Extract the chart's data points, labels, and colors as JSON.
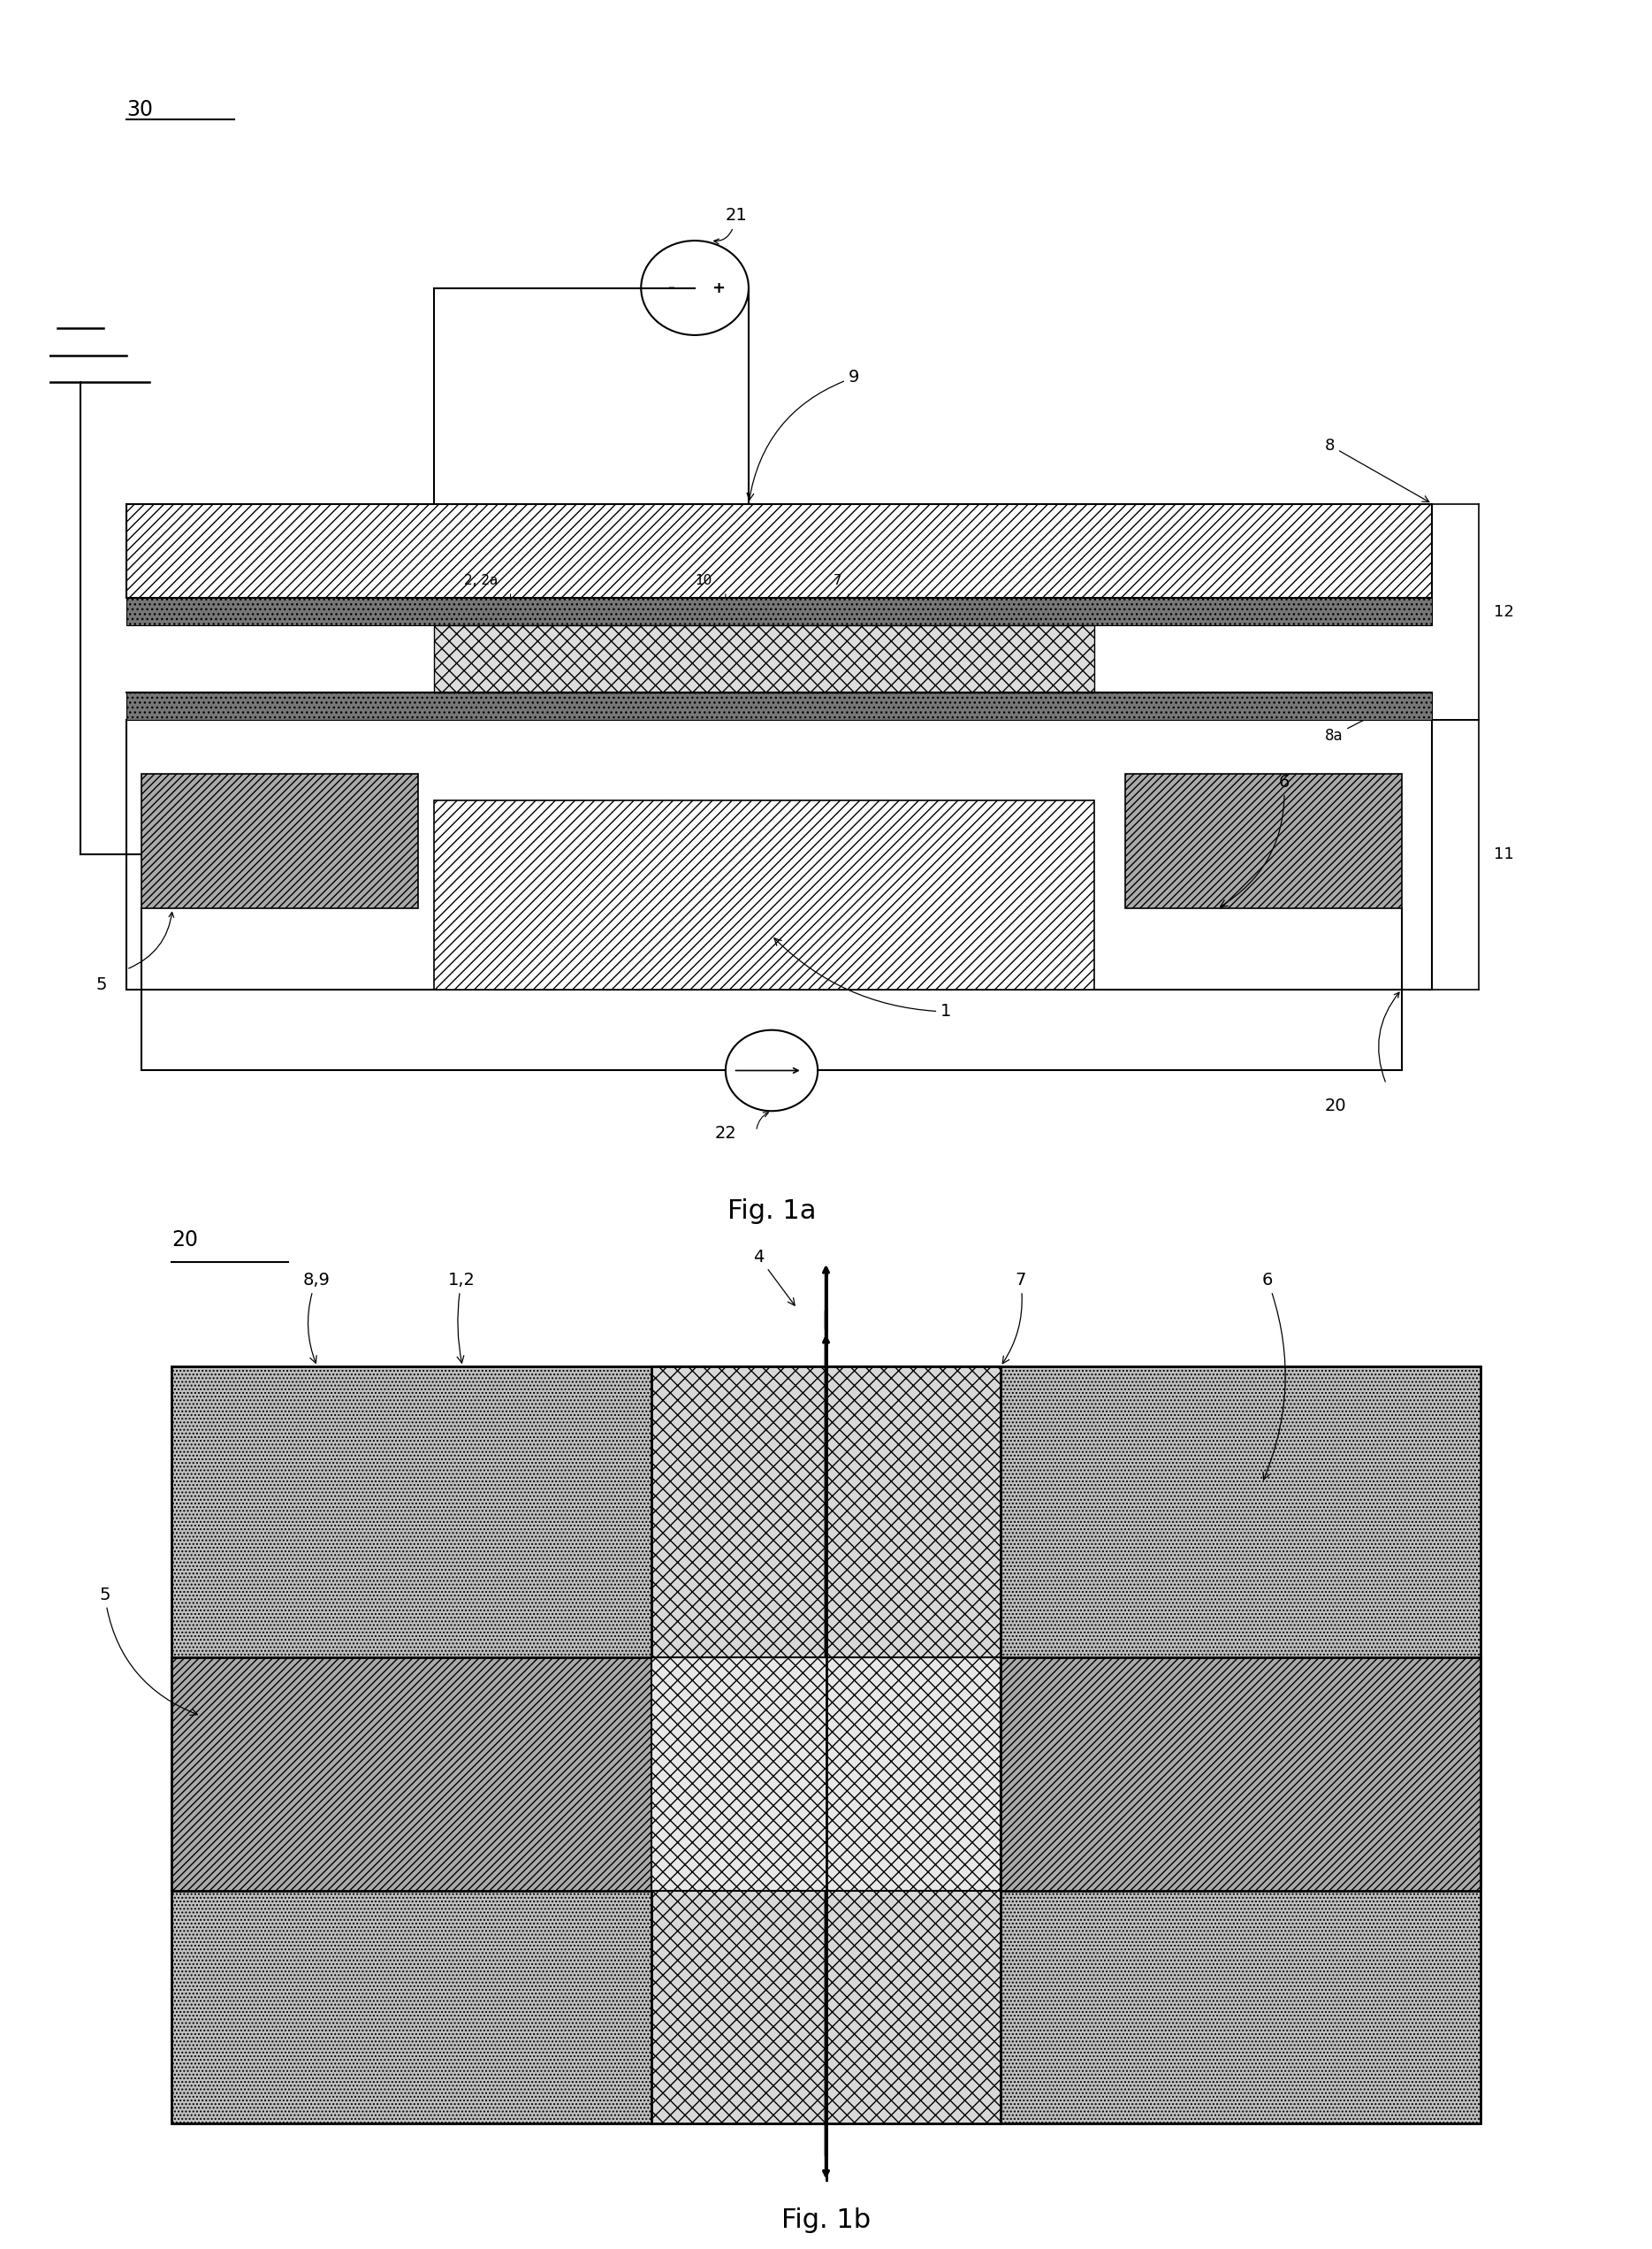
{
  "fig1a": {
    "title": "Fig. 1a",
    "labels": {
      "30": "30",
      "21": "21",
      "9": "9",
      "8": "8",
      "8a": "8a",
      "12": "12",
      "11": "11",
      "5": "5",
      "1": "1",
      "2_2a": "2, 2a",
      "10": "10",
      "7": "7",
      "6": "6",
      "22": "22",
      "20": "20"
    }
  },
  "fig1b": {
    "title": "Fig. 1b",
    "labels": {
      "20": "20",
      "89": "8,9",
      "12": "1,2",
      "4": "4",
      "7": "7",
      "6": "6",
      "5": "5"
    }
  }
}
